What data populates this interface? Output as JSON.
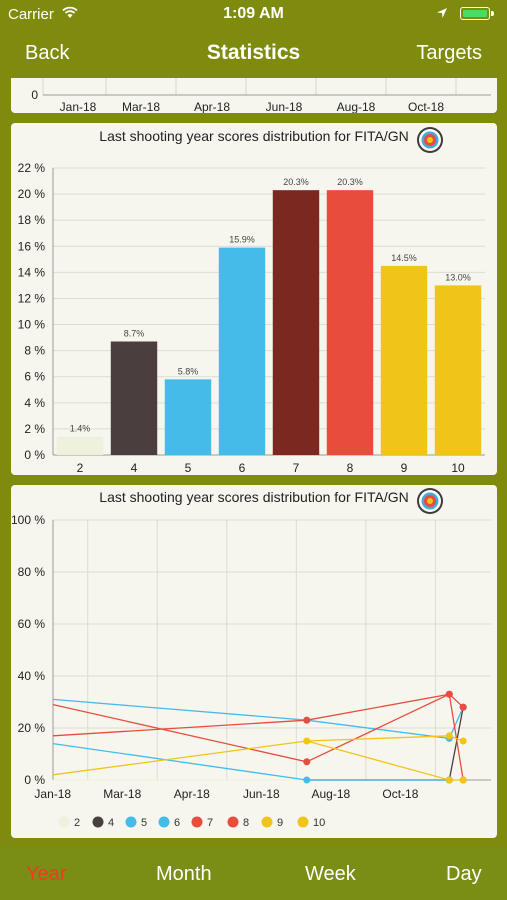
{
  "status": {
    "carrier": "Carrier",
    "time": "1:09 AM"
  },
  "nav": {
    "back": "Back",
    "title": "Statistics",
    "targets": "Targets"
  },
  "top_chart": {
    "y_zero": "0",
    "x_ticks": [
      "Jan-18",
      "Mar-18",
      "Apr-18",
      "Jun-18",
      "Aug-18",
      "Oct-18"
    ]
  },
  "tabs": [
    {
      "label": "Year",
      "active": true
    },
    {
      "label": "Month",
      "active": false
    },
    {
      "label": "Week",
      "active": false
    },
    {
      "label": "Day",
      "active": false
    }
  ],
  "colors": {
    "accent": "#f03b22",
    "bar": "#7f8b0e",
    "s2": "#eef2dc",
    "s4": "#4a3f3e",
    "s5": "#45bbea",
    "s6": "#45bbea",
    "s7": "#7a2820",
    "s8": "#e74c3c",
    "s9": "#f0c419",
    "s10": "#f0c419"
  },
  "chart_data": [
    {
      "type": "bar",
      "title": "Last shooting year scores distribution for FITA/GN",
      "icon": "target-icon",
      "categories": [
        "2",
        "4",
        "5",
        "6",
        "7",
        "8",
        "9",
        "10"
      ],
      "values": [
        1.4,
        8.7,
        5.8,
        15.9,
        20.3,
        20.3,
        14.5,
        13.0
      ],
      "data_labels": [
        "1.4%",
        "8.7%",
        "5.8%",
        "15.9%",
        "20.3%",
        "20.3%",
        "14.5%",
        "13.0%"
      ],
      "colors": [
        "#eef2dc",
        "#4a3f3e",
        "#45bbea",
        "#45bbea",
        "#7a2820",
        "#e74c3c",
        "#f0c419",
        "#f0c419"
      ],
      "y_ticks": [
        "0 %",
        "2 %",
        "4 %",
        "6 %",
        "8 %",
        "10 %",
        "12 %",
        "14 %",
        "16 %",
        "18 %",
        "20 %",
        "22 %"
      ],
      "ylim": [
        0,
        22
      ]
    },
    {
      "type": "line",
      "title": "Last shooting year scores distribution for FITA/GN",
      "icon": "target-icon",
      "x_ticks": [
        "Jan-18",
        "Mar-18",
        "Apr-18",
        "Jun-18",
        "Aug-18",
        "Oct-18"
      ],
      "y_ticks": [
        "0 %",
        "20 %",
        "40 %",
        "60 %",
        "80 %",
        "100 %"
      ],
      "ylim": [
        0,
        100
      ],
      "x_range": [
        0,
        12.6
      ],
      "series": [
        {
          "name": "2",
          "color": "#eef2dc",
          "x": [
            0,
            7.3,
            11.4
          ],
          "y": [
            0,
            0,
            0
          ]
        },
        {
          "name": "4",
          "color": "#4a3f3e",
          "x": [
            7.3,
            11.4,
            11.8
          ],
          "y": [
            0,
            0,
            28
          ]
        },
        {
          "name": "5",
          "color": "#45bbea",
          "x": [
            0,
            7.3,
            11.4
          ],
          "y": [
            14,
            0,
            0
          ]
        },
        {
          "name": "6",
          "color": "#45bbea",
          "x": [
            0,
            7.3,
            11.4,
            11.8
          ],
          "y": [
            31,
            23,
            16,
            28
          ]
        },
        {
          "name": "7",
          "color": "#e74c3c",
          "x": [
            0,
            7.3,
            11.4,
            11.8
          ],
          "y": [
            29,
            7,
            33,
            28
          ]
        },
        {
          "name": "8",
          "color": "#e74c3c",
          "x": [
            0,
            7.3,
            11.4,
            11.8
          ],
          "y": [
            17,
            23,
            33,
            0
          ]
        },
        {
          "name": "9",
          "color": "#f0c419",
          "x": [
            0,
            7.3,
            11.4,
            11.8
          ],
          "y": [
            2,
            15,
            17,
            15
          ]
        },
        {
          "name": "10",
          "color": "#f0c419",
          "x": [
            7.3,
            11.4,
            11.8
          ],
          "y": [
            15,
            0,
            0
          ]
        }
      ]
    }
  ]
}
